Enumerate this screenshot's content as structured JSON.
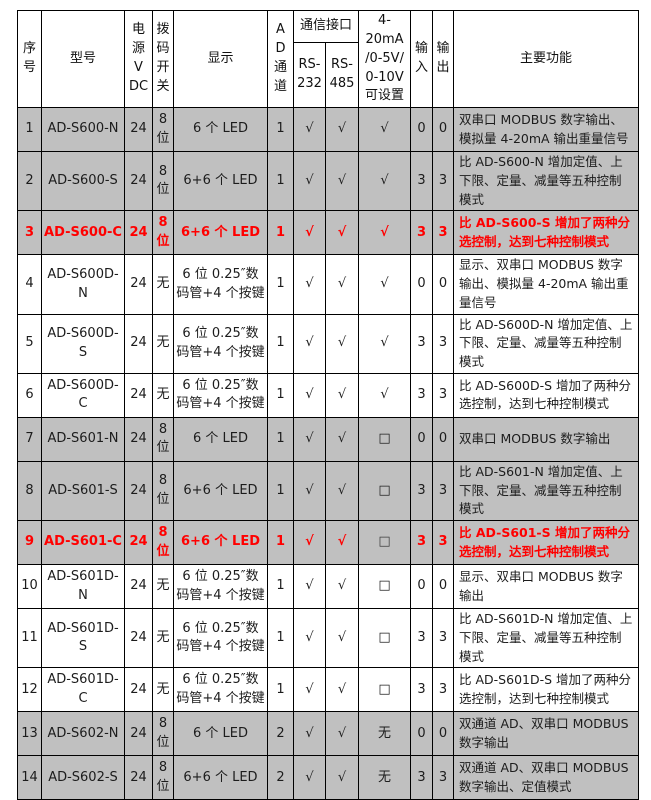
{
  "colors": {
    "highlight_text": "#ff0000",
    "row_shade": "#c0c0c0",
    "border": "#000000",
    "background": "#ffffff"
  },
  "table": {
    "header": {
      "index": "序号",
      "model": "型号",
      "power": "电源\nV\nDC",
      "dip": "拨码开关",
      "display": "显示",
      "ad": "A\nD\n通\n道",
      "comm": "通信接口",
      "rs232": "RS-\n232",
      "rs485": "RS-\n485",
      "analog": "4-20mA\n/0-5V/\n0-10V\n可设置",
      "input": "输\n入",
      "output": "输\n出",
      "func": "主要功能"
    },
    "rows": [
      {
        "no": "1",
        "model": "AD-S600-N",
        "power": "24",
        "dip": "8位",
        "display": "6 个 LED",
        "ad": "1",
        "rs232": "√",
        "rs485": "√",
        "analog": "√",
        "in": "0",
        "out": "0",
        "func": "双串口 MODBUS 数字输出、模拟量 4-20mA 输出重量信号",
        "variant": "gray"
      },
      {
        "no": "2",
        "model": "AD-S600-S",
        "power": "24",
        "dip": "8位",
        "display": "6+6 个 LED",
        "ad": "1",
        "rs232": "√",
        "rs485": "√",
        "analog": "√",
        "in": "3",
        "out": "3",
        "func": "比 AD-S600-N 增加定值、上下限、定量、减量等五种控制模式",
        "variant": "gray"
      },
      {
        "no": "3",
        "model": "AD-S600-C",
        "power": "24",
        "dip": "8位",
        "display": "6+6 个 LED",
        "ad": "1",
        "rs232": "√",
        "rs485": "√",
        "analog": "√",
        "in": "3",
        "out": "3",
        "func": "比 AD-S600-S 增加了两种分选控制，达到七种控制模式",
        "variant": "highlight"
      },
      {
        "no": "4",
        "model": "AD-S600D-N",
        "power": "24",
        "dip": "无",
        "display": "6 位 0.25″数码管+4 个按键",
        "ad": "1",
        "rs232": "√",
        "rs485": "√",
        "analog": "√",
        "in": "0",
        "out": "0",
        "func": "显示、双串口 MODBUS 数字输出、模拟量 4-20mA 输出重量信号",
        "variant": "white"
      },
      {
        "no": "5",
        "model": "AD-S600D-S",
        "power": "24",
        "dip": "无",
        "display": "6 位 0.25″数码管+4 个按键",
        "ad": "1",
        "rs232": "√",
        "rs485": "√",
        "analog": "√",
        "in": "3",
        "out": "3",
        "func": "比 AD-S600D-N 增加定值、上下限、定量、减量等五种控制模式",
        "variant": "white"
      },
      {
        "no": "6",
        "model": "AD-S600D-C",
        "power": "24",
        "dip": "无",
        "display": "6 位 0.25″数码管+4 个按键",
        "ad": "1",
        "rs232": "√",
        "rs485": "√",
        "analog": "√",
        "in": "3",
        "out": "3",
        "func": "比 AD-S600D-S 增加了两种分选控制，达到七种控制模式",
        "variant": "white"
      },
      {
        "no": "7",
        "model": "AD-S601-N",
        "power": "24",
        "dip": "8位",
        "display": "6 个 LED",
        "ad": "1",
        "rs232": "√",
        "rs485": "√",
        "analog": "□",
        "in": "0",
        "out": "0",
        "func": "双串口 MODBUS 数字输出",
        "variant": "gray"
      },
      {
        "no": "8",
        "model": "AD-S601-S",
        "power": "24",
        "dip": "8位",
        "display": "6+6 个 LED",
        "ad": "1",
        "rs232": "√",
        "rs485": "√",
        "analog": "□",
        "in": "3",
        "out": "3",
        "func": "比 AD-S601-N 增加定值、上下限、定量、减量等五种控制模式",
        "variant": "gray"
      },
      {
        "no": "9",
        "model": "AD-S601-C",
        "power": "24",
        "dip": "8位",
        "display": "6+6 个 LED",
        "ad": "1",
        "rs232": "√",
        "rs485": "√",
        "analog": "□",
        "in": "3",
        "out": "3",
        "func": "比 AD-S601-S 增加了两种分选控制，达到七种控制模式",
        "variant": "highlight"
      },
      {
        "no": "10",
        "model": "AD-S601D-N",
        "power": "24",
        "dip": "无",
        "display": "6 位 0.25″数码管+4 个按键",
        "ad": "1",
        "rs232": "√",
        "rs485": "√",
        "analog": "□",
        "in": "0",
        "out": "0",
        "func": "显示、双串口 MODBUS 数字输出",
        "variant": "white"
      },
      {
        "no": "11",
        "model": "AD-S601D-S",
        "power": "24",
        "dip": "无",
        "display": "6 位 0.25″数码管+4 个按键",
        "ad": "1",
        "rs232": "√",
        "rs485": "√",
        "analog": "□",
        "in": "3",
        "out": "3",
        "func": "比 AD-S601D-N 增加定值、上下限、定量、减量等五种控制模式",
        "variant": "white"
      },
      {
        "no": "12",
        "model": "AD-S601D-C",
        "power": "24",
        "dip": "无",
        "display": "6 位 0.25″数码管+4 个按键",
        "ad": "1",
        "rs232": "√",
        "rs485": "√",
        "analog": "□",
        "in": "3",
        "out": "3",
        "func": "比 AD-S601D-S 增加了两种分选控制，达到七种控制模式",
        "variant": "white"
      },
      {
        "no": "13",
        "model": "AD-S602-N",
        "power": "24",
        "dip": "8位",
        "display": "6 个 LED",
        "ad": "2",
        "rs232": "√",
        "rs485": "√",
        "analog": "无",
        "in": "0",
        "out": "0",
        "func": "双通道 AD、双串口 MODBUS 数字输出",
        "variant": "gray"
      },
      {
        "no": "14",
        "model": "AD-S602-S",
        "power": "24",
        "dip": "8位",
        "display": "6+6 个 LED",
        "ad": "2",
        "rs232": "√",
        "rs485": "√",
        "analog": "无",
        "in": "3",
        "out": "3",
        "func": "双通道 AD、双串口 MODBUS 数字输出、定值模式",
        "variant": "gray"
      }
    ]
  }
}
